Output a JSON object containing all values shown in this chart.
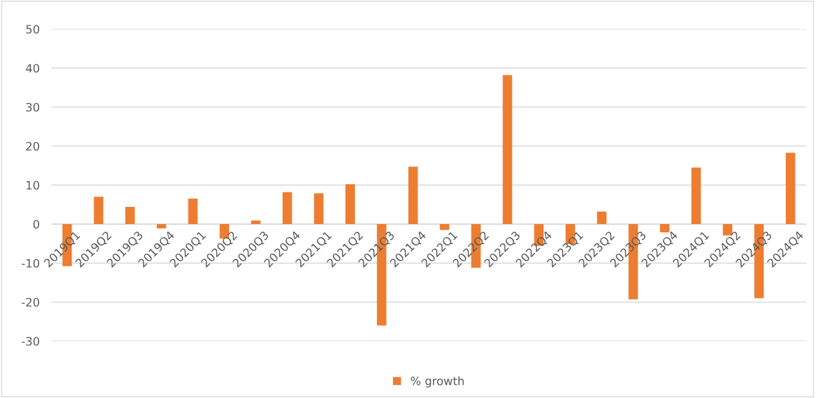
{
  "chart_data": {
    "type": "bar",
    "categories": [
      "2019Q1",
      "2019Q2",
      "2019Q3",
      "2019Q4",
      "2020Q1",
      "2020Q2",
      "2020Q3",
      "2020Q4",
      "2021Q1",
      "2021Q2",
      "2021Q3",
      "2021Q4",
      "2022Q1",
      "2022Q2",
      "2022Q3",
      "2022Q4",
      "2023Q1",
      "2023Q2",
      "2023Q3",
      "2023Q4",
      "2024Q1",
      "2024Q2",
      "2024Q3",
      "2024Q4"
    ],
    "series": [
      {
        "name": "% growth",
        "color": "#ed7d31",
        "values": [
          -10.8,
          7.0,
          4.4,
          -1.1,
          6.5,
          -3.7,
          0.9,
          8.2,
          7.9,
          10.2,
          -26.0,
          14.7,
          -1.5,
          -11.2,
          38.2,
          -5.6,
          -5.1,
          3.2,
          -19.3,
          -2.1,
          14.5,
          -2.9,
          -19.0,
          18.3
        ]
      }
    ],
    "ylim": [
      -30,
      50
    ],
    "yticks": [
      -30,
      -20,
      -10,
      0,
      10,
      20,
      30,
      40,
      50
    ],
    "grid": "y",
    "legend": "bottom"
  }
}
